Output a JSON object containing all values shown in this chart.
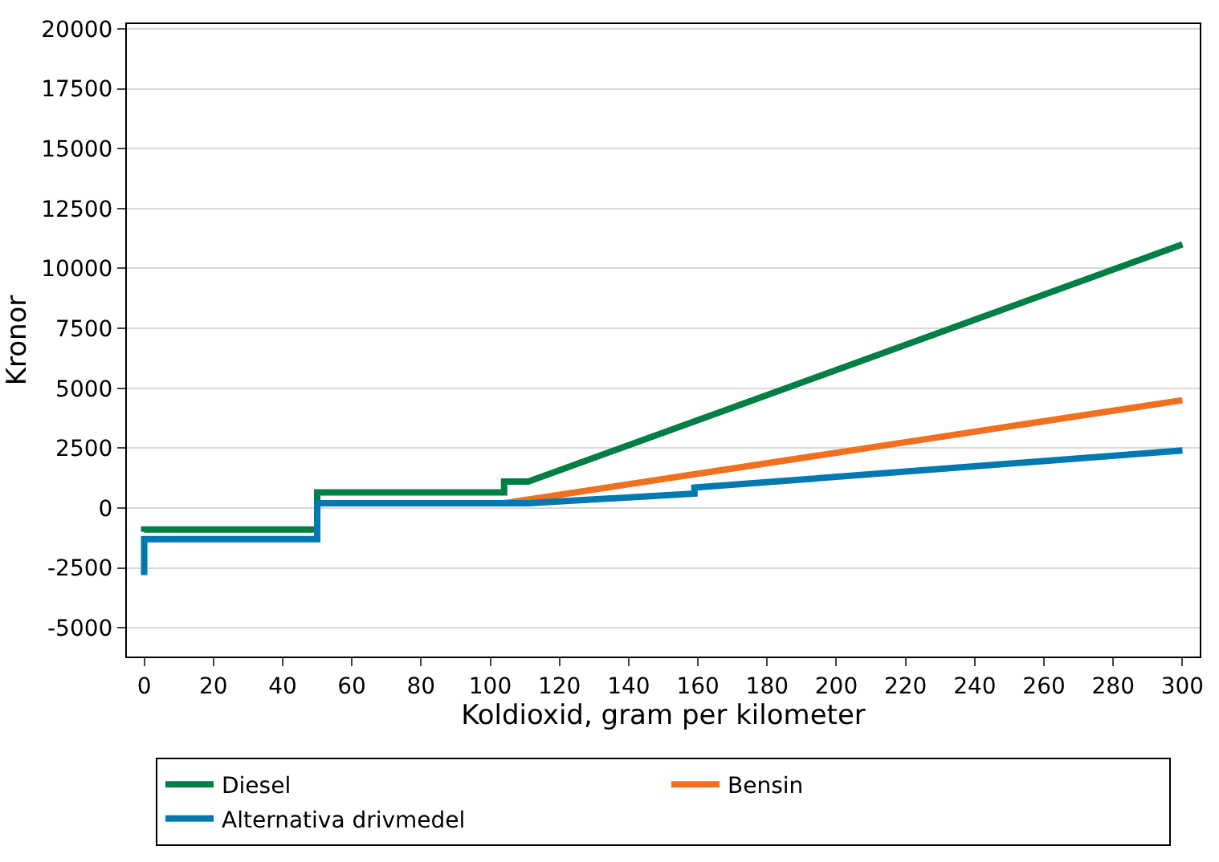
{
  "chart_data": {
    "type": "line",
    "xlabel": "Koldioxid, gram per kilometer",
    "ylabel": "Kronor",
    "xlim": [
      -5,
      305
    ],
    "xticks": [
      0,
      20,
      40,
      60,
      80,
      100,
      120,
      140,
      160,
      180,
      200,
      220,
      240,
      260,
      280,
      300
    ],
    "ylim": [
      -6200,
      20200
    ],
    "yticks": [
      -5000,
      -2500,
      0,
      2500,
      5000,
      7500,
      10000,
      12500,
      15000,
      17500,
      20000
    ],
    "grid": "y",
    "legend": "bottom",
    "marker": "none",
    "line_style": "solid",
    "series": [
      {
        "name": "Diesel",
        "color": "#007f45",
        "x": [
          0,
          0,
          50,
          50,
          104,
          104,
          111,
          300
        ],
        "values": [
          -1000,
          -900,
          -900,
          650,
          650,
          1100,
          1100,
          11000
        ]
      },
      {
        "name": "Bensin",
        "color": "#f07020",
        "x": [
          104,
          300
        ],
        "values": [
          200,
          4500
        ]
      },
      {
        "name": "Alternativa drivmedel",
        "color": "#0079b0",
        "x": [
          0,
          0,
          50,
          50,
          111,
          159,
          159,
          300
        ],
        "values": [
          -2800,
          -1300,
          -1300,
          200,
          200,
          600,
          850,
          2400
        ]
      }
    ]
  }
}
